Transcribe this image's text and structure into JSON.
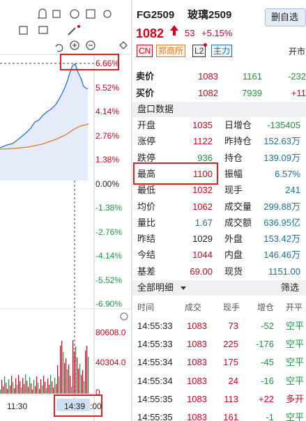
{
  "chart_panel": {
    "price_axis": [
      "6.66%",
      "5.52%",
      "4.14%",
      "2.76%",
      "1.38%",
      "0.00%",
      "-1.38%",
      "-2.76%",
      "-4.14%",
      "-5.52%",
      "-6.90%"
    ],
    "volume_axis": [
      "80608.0",
      "40304.0",
      "0"
    ],
    "time_axis": [
      "11:30",
      "14:39",
      ":00"
    ]
  },
  "header": {
    "code": "FG2509",
    "name": "玻璃2509",
    "button": "删自选",
    "price": "1082",
    "change": "53",
    "change_pct": "+5.15%",
    "tags": [
      "CN",
      "郑商所",
      "L2",
      "主力"
    ],
    "status": "开市"
  },
  "order_book": [
    [
      "卖价",
      "1083",
      "1161",
      "-232"
    ],
    [
      "买价",
      "1082",
      "7939",
      "+11"
    ]
  ],
  "quote_section": {
    "title": "盘口数据",
    "rows": [
      [
        "开盘",
        "1035",
        "日增仓",
        "-135405"
      ],
      [
        "涨停",
        "1122",
        "昨持仓",
        "152.63万"
      ],
      [
        "跌停",
        "936",
        "持仓",
        "139.09万"
      ],
      [
        "最高",
        "1100",
        "振幅",
        "6.57%"
      ],
      [
        "最低",
        "1032",
        "现手",
        "241"
      ],
      [
        "均价",
        "1062",
        "成交量",
        "299.88万"
      ],
      [
        "量比",
        "1.67",
        "成交额",
        "636.95亿"
      ],
      [
        "昨结",
        "1029",
        "外盘",
        "153.42万"
      ],
      [
        "今结",
        "1044",
        "内盘",
        "146.46万"
      ],
      [
        "基差",
        "69.00",
        "现货",
        "1151.00"
      ]
    ]
  },
  "trades": {
    "title": "全部明细",
    "filter": "筛选",
    "columns": [
      "时间",
      "成交",
      "现手",
      "增仓",
      "开平"
    ],
    "rows": [
      [
        "14:55:33",
        "1083",
        "73",
        "-52",
        "空平"
      ],
      [
        "14:55:33",
        "1083",
        "225",
        "-176",
        "空平"
      ],
      [
        "14:55:34",
        "1083",
        "175",
        "-45",
        "空平"
      ],
      [
        "14:55:34",
        "1083",
        "24",
        "-16",
        "空平"
      ],
      [
        "14:55:35",
        "1083",
        "113",
        "+22",
        "多开"
      ],
      [
        "14:55:35",
        "1083",
        "161",
        "-1",
        "空平"
      ]
    ]
  }
}
